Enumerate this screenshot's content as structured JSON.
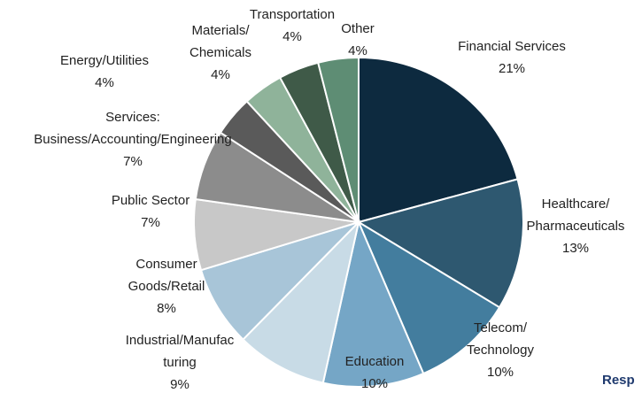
{
  "chart_data": {
    "type": "pie",
    "categories": [
      "Financial Services",
      "Healthcare/\nPharmaceuticals",
      "Telecom/\nTechnology",
      "Education",
      "Industrial/Manufac\nturing",
      "Consumer\nGoods/Retail",
      "Public Sector",
      "Services:\nBusiness/Accounting/Engineering",
      "Energy/Utilities",
      "Materials/\nChemicals",
      "Transportation",
      "Other"
    ],
    "values": [
      21,
      13,
      10,
      10,
      9,
      8,
      7,
      7,
      4,
      4,
      4,
      4
    ],
    "value_labels": [
      "21%",
      "13%",
      "10%",
      "10%",
      "9%",
      "8%",
      "7%",
      "7%",
      "4%",
      "4%",
      "4%",
      "4%"
    ],
    "colors": [
      "#0d2a3f",
      "#2e5870",
      "#437d9e",
      "#75a6c6",
      "#c8dbe6",
      "#a8c5d8",
      "#c8c8c8",
      "#8c8c8c",
      "#5a5a5a",
      "#8fb39a",
      "#3f5a48",
      "#5e8d74"
    ],
    "annotation": "Resp"
  }
}
